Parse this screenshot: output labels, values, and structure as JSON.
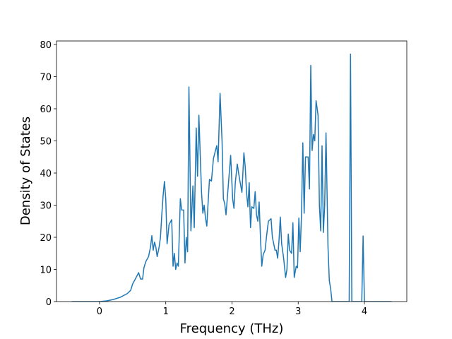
{
  "chart_data": {
    "type": "line",
    "x_label": "Frequency (THz)",
    "y_label": "Density of States",
    "x": [
      -0.42,
      0.0,
      0.1,
      0.2,
      0.31,
      0.42,
      0.47,
      0.5,
      0.54,
      0.59,
      0.62,
      0.65,
      0.67,
      0.7,
      0.74,
      0.77,
      0.79,
      0.81,
      0.83,
      0.85,
      0.87,
      0.9,
      0.92,
      0.94,
      0.96,
      0.98,
      1.0,
      1.02,
      1.05,
      1.09,
      1.11,
      1.13,
      1.15,
      1.17,
      1.19,
      1.22,
      1.24,
      1.27,
      1.29,
      1.31,
      1.33,
      1.35,
      1.38,
      1.41,
      1.43,
      1.46,
      1.48,
      1.5,
      1.54,
      1.56,
      1.58,
      1.6,
      1.62,
      1.64,
      1.66,
      1.69,
      1.72,
      1.75,
      1.77,
      1.79,
      1.82,
      1.85,
      1.87,
      1.89,
      1.91,
      1.94,
      1.98,
      2.01,
      2.03,
      2.05,
      2.08,
      2.1,
      2.12,
      2.15,
      2.18,
      2.2,
      2.22,
      2.24,
      2.26,
      2.28,
      2.3,
      2.33,
      2.35,
      2.37,
      2.39,
      2.41,
      2.43,
      2.45,
      2.47,
      2.5,
      2.52,
      2.55,
      2.59,
      2.61,
      2.65,
      2.67,
      2.69,
      2.71,
      2.73,
      2.75,
      2.78,
      2.81,
      2.83,
      2.85,
      2.87,
      2.9,
      2.92,
      2.94,
      2.97,
      2.99,
      3.01,
      3.03,
      3.05,
      3.07,
      3.09,
      3.11,
      3.15,
      3.17,
      3.19,
      3.21,
      3.23,
      3.25,
      3.27,
      3.3,
      3.32,
      3.34,
      3.36,
      3.38,
      3.4,
      3.42,
      3.45,
      3.47,
      3.49,
      3.51,
      3.77,
      3.79,
      3.81,
      3.96,
      3.98,
      4.0,
      4.41
    ],
    "series": [
      {
        "color": "#1f77b4",
        "values": [
          0,
          0,
          0.2,
          0.6,
          1.3,
          2.5,
          3.5,
          5.5,
          7,
          9,
          7,
          7,
          10.5,
          12.5,
          14,
          17,
          20.5,
          16,
          18.5,
          17,
          14,
          17,
          20,
          27,
          33,
          37.4,
          32,
          18,
          24,
          25.5,
          11,
          15,
          10,
          12,
          11,
          32,
          28.5,
          28.5,
          12,
          20,
          15.5,
          66.8,
          22,
          36,
          23,
          54,
          39,
          58,
          34,
          27.5,
          30,
          26,
          23.5,
          31,
          38,
          37.5,
          44.5,
          47,
          48.5,
          43.5,
          64.8,
          50,
          32,
          30.5,
          27,
          35,
          45.5,
          32,
          29,
          37,
          42.8,
          40,
          37.5,
          34,
          46.3,
          42,
          34,
          29.5,
          37,
          23,
          29.5,
          29,
          34.2,
          27,
          25,
          31,
          20,
          11,
          14.5,
          16,
          20,
          25,
          25.8,
          20,
          16,
          16,
          13.5,
          19,
          26.3,
          18,
          13.5,
          7.5,
          10,
          21,
          16,
          15,
          24.5,
          7.5,
          11,
          10.5,
          26,
          15.5,
          27,
          49.4,
          27.5,
          45,
          45,
          35,
          73.5,
          47,
          52,
          50,
          62.5,
          58,
          30,
          22,
          48.5,
          21.5,
          30,
          52.5,
          17,
          6.5,
          4,
          0,
          0,
          77,
          0,
          0,
          20.4,
          0,
          0
        ]
      }
    ],
    "xlim": [
      -0.65,
      4.64
    ],
    "ylim": [
      0,
      81.1
    ],
    "xticks": [
      0,
      1,
      2,
      3,
      4
    ],
    "yticks": [
      0,
      10,
      20,
      30,
      40,
      50,
      60,
      70,
      80
    ]
  }
}
